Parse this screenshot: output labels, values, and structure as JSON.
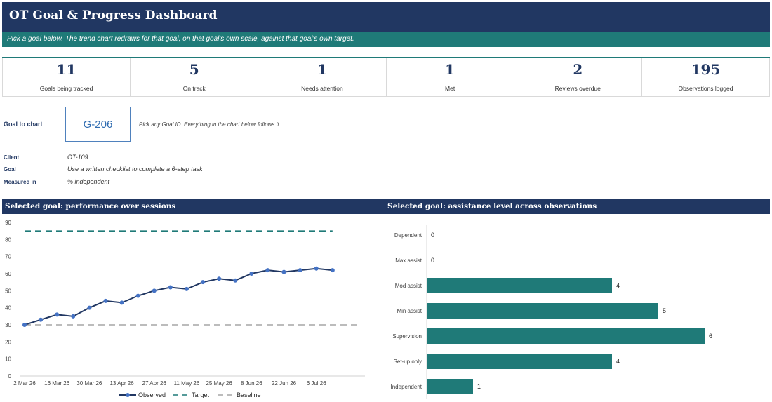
{
  "header": {
    "title": "OT Goal & Progress Dashboard",
    "subtitle": "Pick a goal below. The trend chart redraws for that goal, on that goal's own scale, against that goal's own target."
  },
  "kpis": [
    {
      "value": "11",
      "label": "Goals being tracked"
    },
    {
      "value": "5",
      "label": "On track"
    },
    {
      "value": "1",
      "label": "Needs attention"
    },
    {
      "value": "1",
      "label": "Met"
    },
    {
      "value": "2",
      "label": "Reviews overdue"
    },
    {
      "value": "195",
      "label": "Observations logged"
    }
  ],
  "selector": {
    "label": "Goal to chart",
    "value": "G-206",
    "hint": "Pick any Goal ID. Everything in the chart below follows it."
  },
  "details": {
    "client_label": "Client",
    "client_value": "OT-109",
    "goal_label": "Goal",
    "goal_value": "Use a written checklist to complete a 6-step task",
    "measure_label": "Measured in",
    "measure_value": "% independent"
  },
  "colors": {
    "navy": "#213762",
    "teal": "#1f7a78",
    "observed_marker": "#4472c4",
    "baseline": "#a6a6a6"
  },
  "chart_data": [
    {
      "type": "line",
      "title": "Selected goal: performance over sessions",
      "x_tick_labels": [
        "2 Mar 26",
        "16 Mar 26",
        "30 Mar 26",
        "13 Apr 26",
        "27 Apr 26",
        "11 May 26",
        "25 May 26",
        "8 Jun 26",
        "22 Jun 26",
        "6 Jul 26"
      ],
      "x_dates": [
        "2026-03-02",
        "2026-03-09",
        "2026-03-16",
        "2026-03-23",
        "2026-03-30",
        "2026-04-06",
        "2026-04-13",
        "2026-04-20",
        "2026-04-27",
        "2026-05-04",
        "2026-05-11",
        "2026-05-18",
        "2026-05-25",
        "2026-06-01",
        "2026-06-08",
        "2026-06-15",
        "2026-06-22",
        "2026-06-29",
        "2026-07-06",
        "2026-07-13"
      ],
      "series": [
        {
          "name": "Observed",
          "values": [
            30,
            33,
            36,
            35,
            40,
            44,
            43,
            47,
            50,
            52,
            51,
            55,
            57,
            56,
            60,
            62,
            61,
            62,
            63,
            62
          ]
        },
        {
          "name": "Target",
          "values": [
            85,
            85
          ]
        },
        {
          "name": "Baseline",
          "values": [
            30,
            30
          ]
        }
      ],
      "ylim": [
        0,
        90
      ],
      "y_ticks": [
        0,
        10,
        20,
        30,
        40,
        50,
        60,
        70,
        80,
        90
      ],
      "xlim": [
        "2026-03-02",
        "2026-07-27"
      ],
      "legend": "bottom"
    },
    {
      "type": "bar",
      "title": "Selected goal: assistance level across observations",
      "categories": [
        "Dependent",
        "Max assist",
        "Mod assist",
        "Min assist",
        "Supervision",
        "Set-up only",
        "Independent"
      ],
      "values": [
        0,
        0,
        4,
        5,
        6,
        4,
        1
      ],
      "orientation": "horizontal"
    }
  ]
}
